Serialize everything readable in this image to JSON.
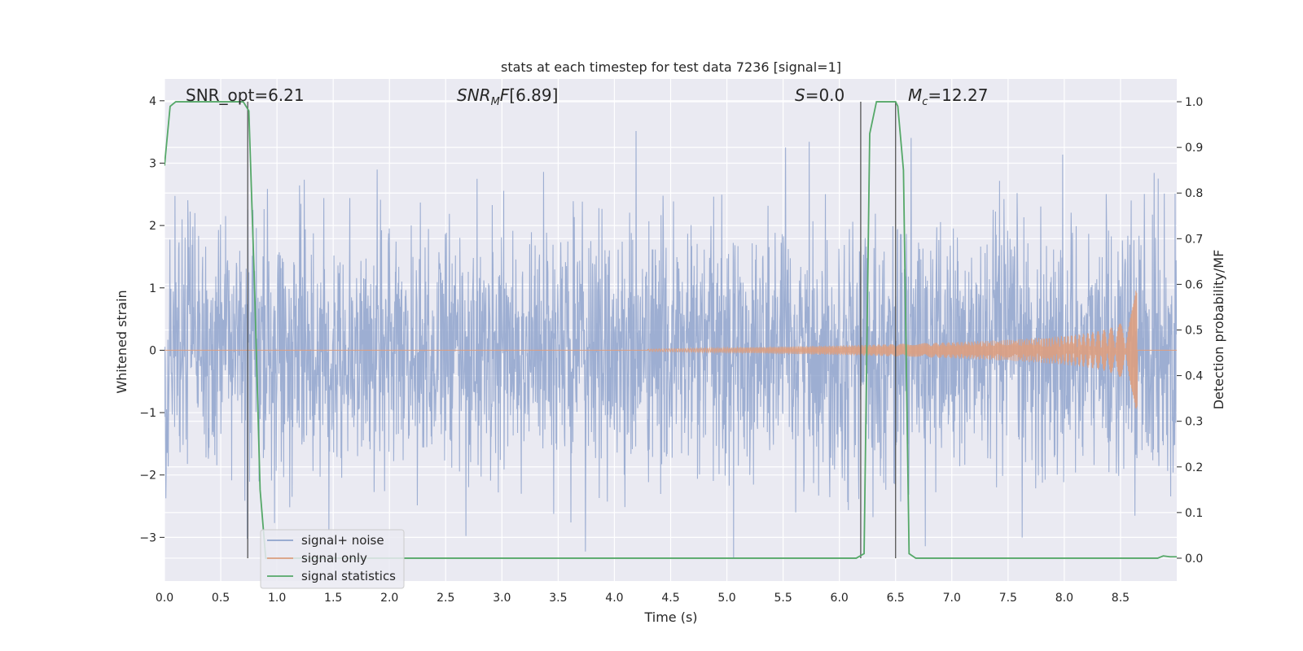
{
  "chart_data": {
    "type": "line",
    "title": "stats at each timestep for test data 7236 [signal=1]",
    "xlabel": "Time (s)",
    "ylabel_left": "Whitened strain",
    "ylabel_right": "Detection probability/MF",
    "xlim": [
      0.0,
      9.0
    ],
    "ylim_left": [
      -3.7,
      4.35
    ],
    "ylim_right": [
      -0.05,
      1.05
    ],
    "xticks": [
      "0.0",
      "0.5",
      "1.0",
      "1.5",
      "2.0",
      "2.5",
      "3.0",
      "3.5",
      "4.0",
      "4.5",
      "5.0",
      "5.5",
      "6.0",
      "6.5",
      "7.0",
      "7.5",
      "8.0",
      "8.5"
    ],
    "yticks_left": [
      "−3",
      "−2",
      "−1",
      "0",
      "1",
      "2",
      "3",
      "4"
    ],
    "yticks_right": [
      "0.0",
      "0.1",
      "0.2",
      "0.3",
      "0.4",
      "0.5",
      "0.6",
      "0.7",
      "0.8",
      "0.9",
      "1.0"
    ],
    "grid": true,
    "legend_position": "lower-left",
    "annotations": {
      "snr_opt": "SNR_opt=6.21",
      "snr_mf": "[6.89]",
      "s_value": "=0.0",
      "mc_value": "=12.27"
    },
    "vertical_lines_x": [
      0.74,
      6.19,
      6.5
    ],
    "series": [
      {
        "name": "signal+ noise",
        "color": "#8fa3cc",
        "noise_amplitude": 1.0,
        "noise_peak": 3.9
      },
      {
        "name": "signal only",
        "color": "#dd9f80",
        "chirp_start_x": 4.3,
        "chirp_peak_x": 8.65,
        "chirp_peak_amplitude": 1.0,
        "chirp_min_amplitude": -1.1
      },
      {
        "name": "signal statistics",
        "color": "#55a868",
        "points": [
          [
            0.0,
            0.86
          ],
          [
            0.05,
            0.99
          ],
          [
            0.1,
            1.0
          ],
          [
            0.7,
            1.0
          ],
          [
            0.75,
            0.98
          ],
          [
            0.8,
            0.6
          ],
          [
            0.85,
            0.15
          ],
          [
            0.9,
            0.0
          ],
          [
            6.15,
            0.0
          ],
          [
            6.22,
            0.01
          ],
          [
            6.27,
            0.93
          ],
          [
            6.33,
            1.0
          ],
          [
            6.5,
            1.0
          ],
          [
            6.52,
            0.99
          ],
          [
            6.57,
            0.85
          ],
          [
            6.62,
            0.01
          ],
          [
            6.68,
            0.0
          ],
          [
            8.83,
            0.0
          ],
          [
            8.88,
            0.005
          ],
          [
            8.94,
            0.003
          ],
          [
            9.0,
            0.003
          ]
        ]
      }
    ]
  }
}
